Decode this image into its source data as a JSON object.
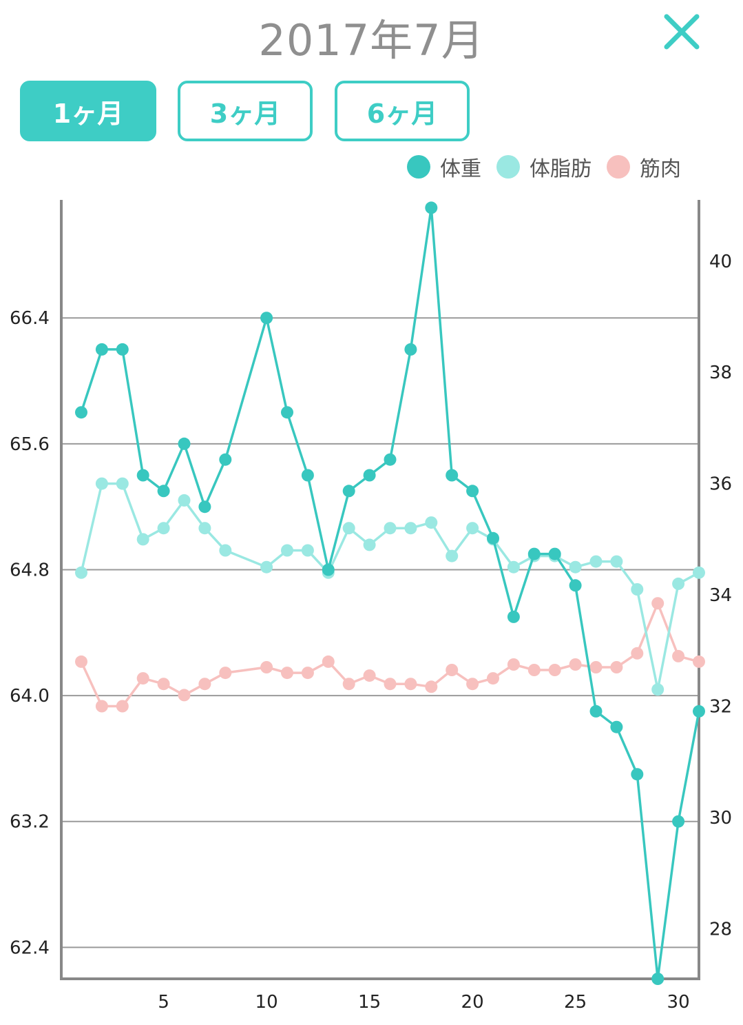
{
  "header": {
    "title": "2017年7月",
    "close_label": "×"
  },
  "period_buttons": [
    {
      "label": "1ヶ月",
      "active": true
    },
    {
      "label": "3ヶ月",
      "active": false
    },
    {
      "label": "6ヶ月",
      "active": false
    }
  ],
  "legend": [
    {
      "label": "体重",
      "color": "#38c7bf"
    },
    {
      "label": "体脂肪",
      "color": "#9ae8e2"
    },
    {
      "label": "筋肉",
      "color": "#f7c0be"
    }
  ],
  "chart_data": {
    "type": "line",
    "x": [
      1,
      2,
      3,
      4,
      5,
      6,
      7,
      8,
      9,
      10,
      11,
      12,
      13,
      14,
      15,
      16,
      17,
      18,
      19,
      20,
      21,
      22,
      23,
      24,
      25,
      26,
      27,
      28,
      29,
      30,
      31
    ],
    "x_ticks": [
      5,
      10,
      15,
      20,
      25,
      30
    ],
    "xlim": [
      0,
      31
    ],
    "y_left": {
      "ticks": [
        "62.4",
        "63.2",
        "64.0",
        "64.8",
        "65.6",
        "66.4"
      ],
      "lim": [
        62.2,
        67.15
      ]
    },
    "y_right": {
      "ticks": [
        "28",
        "30",
        "32",
        "34",
        "36",
        "38",
        "40"
      ],
      "lim": [
        27.1,
        41.1
      ]
    },
    "grid": true,
    "legend_position": "top-right",
    "series": [
      {
        "name": "体重",
        "axis": "left",
        "color": "#38c7bf",
        "values": [
          65.8,
          66.2,
          66.2,
          65.4,
          65.3,
          65.6,
          65.2,
          65.5,
          null,
          66.4,
          65.8,
          65.4,
          64.8,
          65.3,
          65.4,
          65.5,
          66.2,
          67.1,
          65.4,
          65.3,
          65.0,
          64.5,
          64.9,
          64.9,
          64.7,
          63.9,
          63.8,
          63.5,
          62.2,
          63.2,
          63.9
        ]
      },
      {
        "name": "体脂肪",
        "axis": "right",
        "color": "#9ae8e2",
        "values": [
          34.4,
          36.0,
          36.0,
          35.0,
          35.2,
          35.7,
          35.2,
          34.8,
          null,
          34.5,
          34.8,
          34.8,
          34.4,
          35.2,
          34.9,
          35.2,
          35.2,
          35.3,
          34.7,
          35.2,
          35.0,
          34.5,
          34.7,
          34.7,
          34.5,
          34.6,
          34.6,
          34.1,
          32.3,
          34.2,
          34.4
        ]
      },
      {
        "name": "筋肉",
        "axis": "right",
        "color": "#f7c0be",
        "values": [
          32.8,
          32.0,
          32.0,
          32.5,
          32.4,
          32.2,
          32.4,
          32.6,
          null,
          32.7,
          32.6,
          32.6,
          32.8,
          32.4,
          32.55,
          32.4,
          32.4,
          32.35,
          32.65,
          32.4,
          32.5,
          32.75,
          32.65,
          32.65,
          32.75,
          32.7,
          32.7,
          32.95,
          33.85,
          32.9,
          32.8
        ]
      }
    ]
  }
}
